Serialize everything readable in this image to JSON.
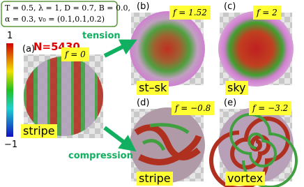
{
  "params": {
    "line1": "T = 0.5, λ = 1, D = 0.7, B = 0.0,",
    "line2": "α = 0.3, v₀ = (0.1,0.1,0.2)"
  },
  "colorbar": {
    "max": "1",
    "min": "−1"
  },
  "n_label": "N=5430",
  "tension": "tension",
  "compression": "compression",
  "panels": [
    {
      "id": "(a)",
      "f": "f = 0",
      "name": "stripe"
    },
    {
      "id": "(b)",
      "f": "f = 1.52",
      "name": "st–sk"
    },
    {
      "id": "(c)",
      "f": "f = 2",
      "name": "sky"
    },
    {
      "id": "(d)",
      "f": "f = −0.8",
      "name": "stripe"
    },
    {
      "id": "(e)",
      "f": "f = −3.2",
      "name": "vortex"
    }
  ]
}
